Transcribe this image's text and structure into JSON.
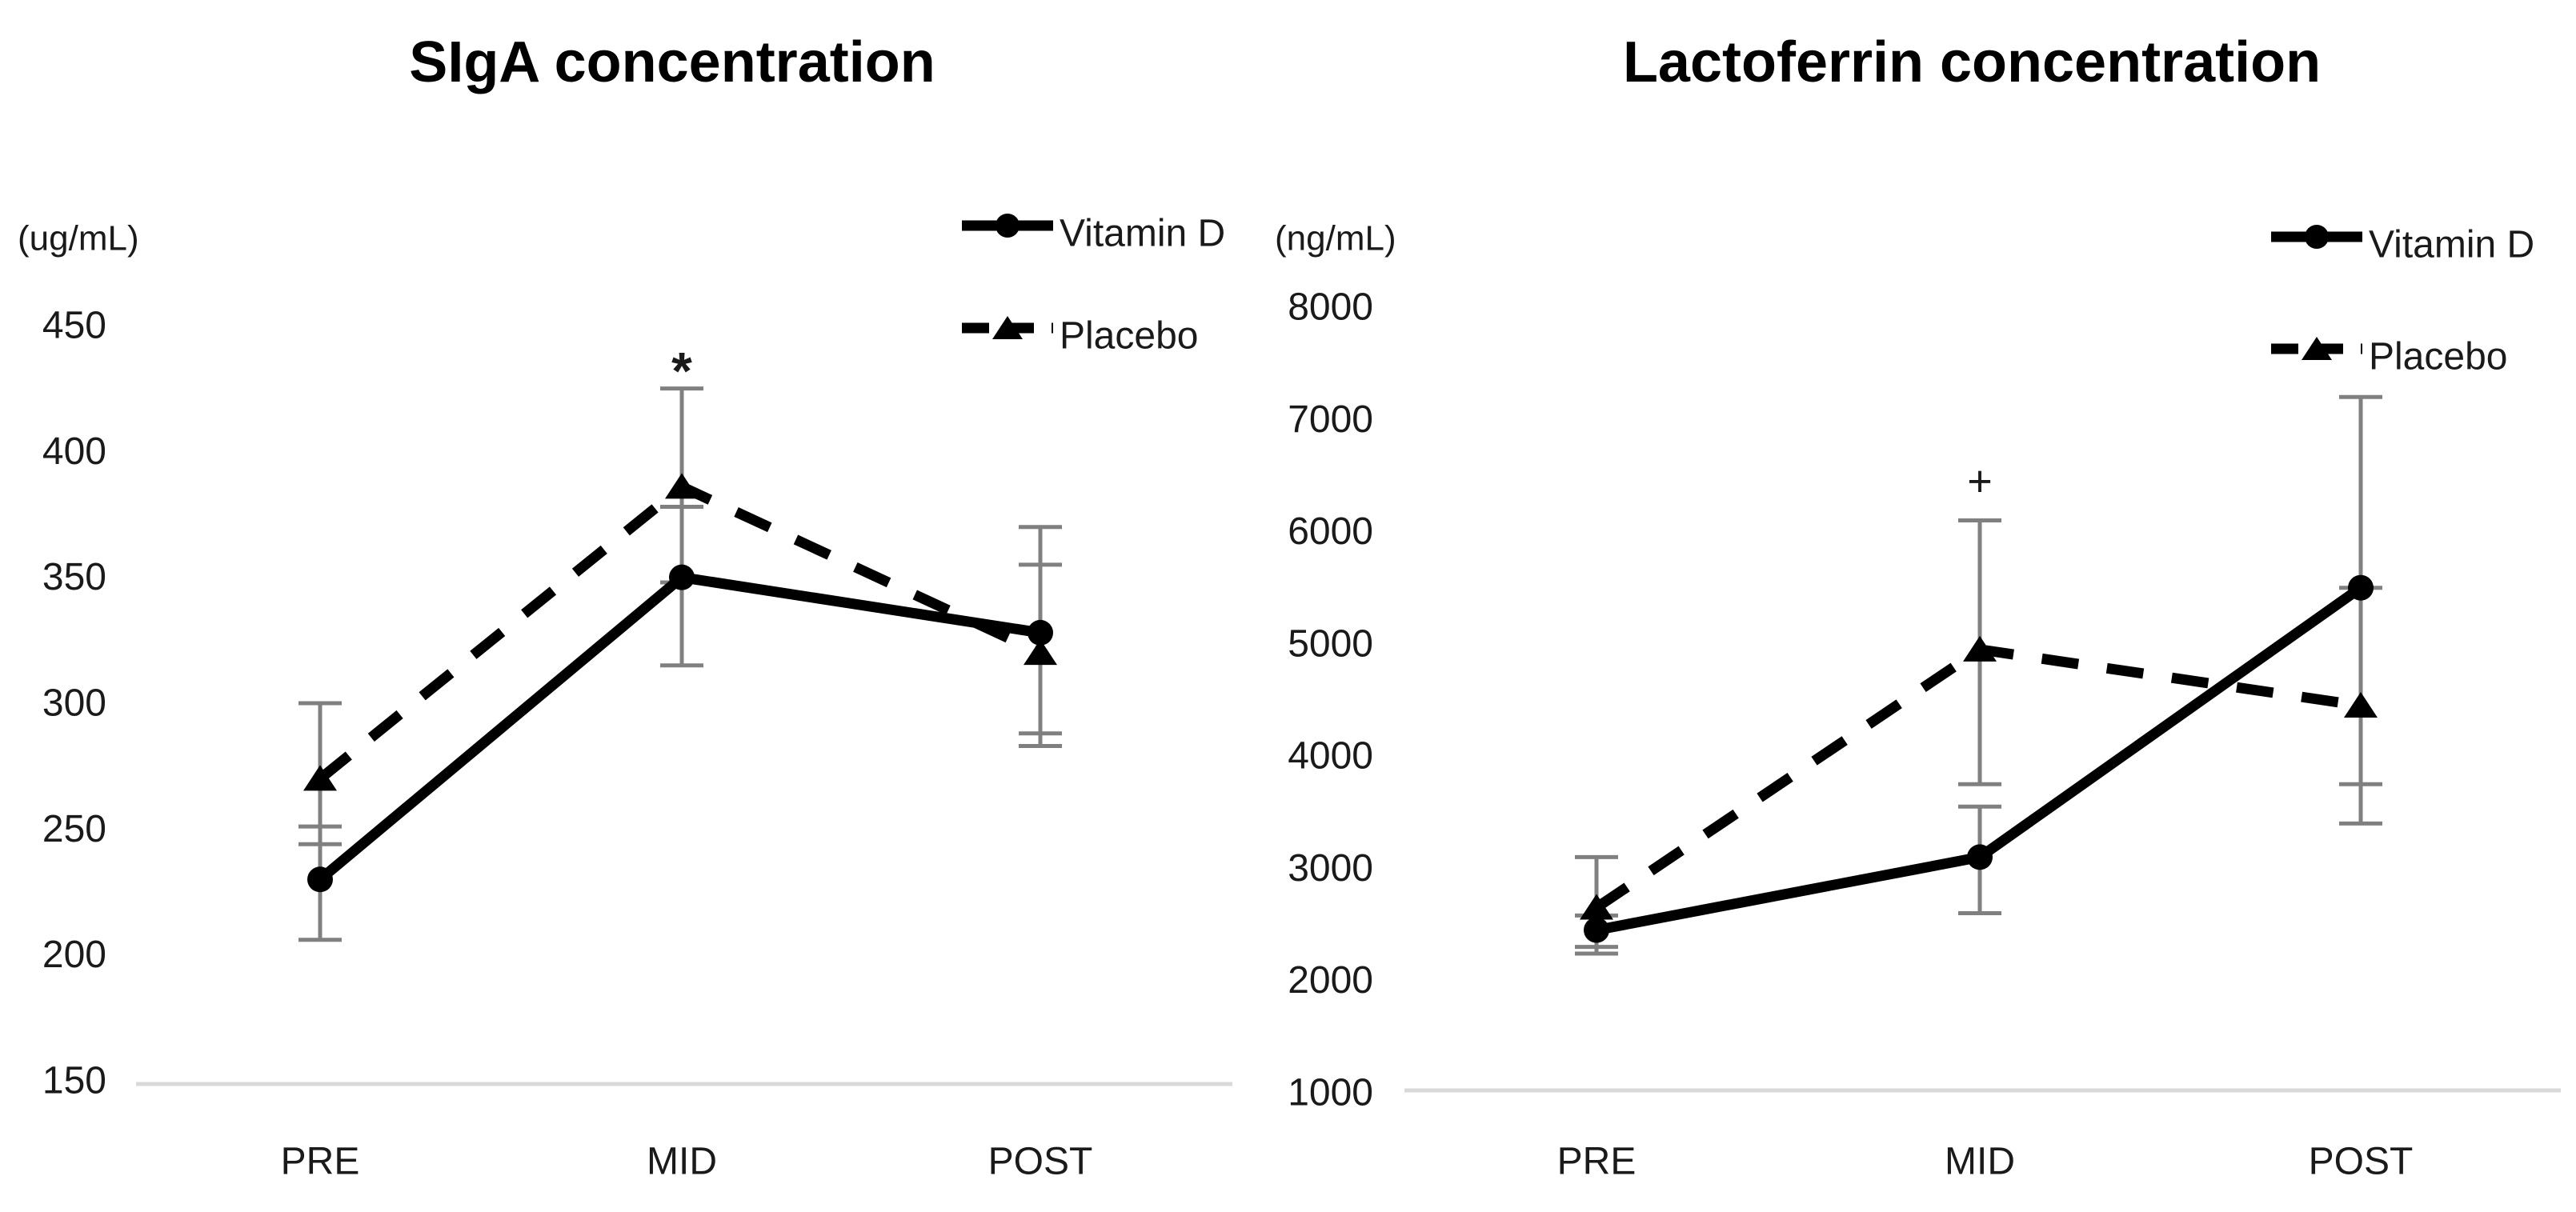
{
  "figure": {
    "background": "#ffffff",
    "panel_count": 2
  },
  "colors": {
    "series_line": "#000000",
    "marker": "#000000",
    "error_bar": "#808080",
    "baseline_grid": "#d9d9d9",
    "text": "#1a1a1a",
    "title_text": "#000000"
  },
  "chart_data": [
    {
      "type": "line",
      "title": "SIgA concentration",
      "unit_label": "(ug/mL)",
      "ylabel": "(ug/mL)",
      "categories": [
        "PRE",
        "MID",
        "POST"
      ],
      "y_ticks": [
        450,
        400,
        350,
        300,
        250,
        200,
        150
      ],
      "ylim": [
        150,
        450
      ],
      "grid": "baseline-only",
      "legend_position": "top-right",
      "legend": [
        {
          "label": "Vitamin D",
          "line": "solid",
          "marker": "circle"
        },
        {
          "label": "Placebo",
          "line": "dashed",
          "marker": "triangle"
        }
      ],
      "series": [
        {
          "name": "Vitamin D",
          "line": "solid",
          "marker": "circle",
          "values": [
            230,
            350,
            328
          ],
          "error_range": [
            [
              206,
              251
            ],
            [
              315,
              378
            ],
            [
              288,
              370
            ]
          ]
        },
        {
          "name": "Placebo",
          "line": "dashed",
          "marker": "triangle",
          "values": [
            270,
            386,
            320
          ],
          "error_range": [
            [
              244,
              300
            ],
            [
              348,
              425
            ],
            [
              283,
              355
            ]
          ]
        }
      ],
      "annotations": [
        {
          "text": "*",
          "category": "MID",
          "y_value": 432
        }
      ]
    },
    {
      "type": "line",
      "title": "Lactoferrin concentration",
      "unit_label": "(ng/mL)",
      "ylabel": "(ng/mL)",
      "categories": [
        "PRE",
        "MID",
        "POST"
      ],
      "y_ticks": [
        8000,
        7000,
        6000,
        5000,
        4000,
        3000,
        2000,
        1000
      ],
      "ylim": [
        1000,
        8000
      ],
      "grid": "baseline-only",
      "legend_position": "top-right",
      "legend": [
        {
          "label": "Vitamin D",
          "line": "solid",
          "marker": "circle"
        },
        {
          "label": "Placebo",
          "line": "dashed",
          "marker": "triangle"
        }
      ],
      "series": [
        {
          "name": "Vitamin D",
          "line": "solid",
          "marker": "circle",
          "values": [
            2450,
            3100,
            5500
          ],
          "error_range": [
            [
              2240,
              2580
            ],
            [
              2600,
              3550
            ],
            [
              3750,
              7200
            ]
          ]
        },
        {
          "name": "Placebo",
          "line": "dashed",
          "marker": "triangle",
          "values": [
            2650,
            4950,
            4450
          ],
          "error_range": [
            [
              2300,
              3100
            ],
            [
              3750,
              6100
            ],
            [
              3400,
              5500
            ]
          ]
        }
      ],
      "annotations": [
        {
          "text": "+",
          "category": "MID",
          "y_value": 6450
        }
      ]
    }
  ]
}
